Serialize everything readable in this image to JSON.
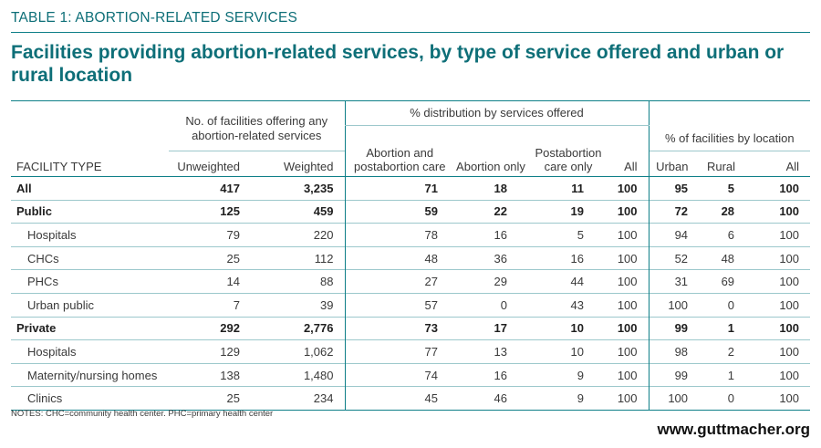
{
  "table_label": "TABLE 1: ABORTION-RELATED SERVICES",
  "title": "Facilities providing abortion-related services, by type of service offered and urban or rural location",
  "headers": {
    "facility_type": "FACILITY TYPE",
    "group_facilities": "No. of facilities offering any abortion-related services",
    "group_distribution": "% distribution by services offered",
    "group_location": "% of facilities by location",
    "unweighted": "Unweighted",
    "weighted": "Weighted",
    "abortion_postabortion": "Abortion and postabortion care",
    "abortion_only": "Abortion only",
    "postabortion_only": "Postabortion care only",
    "all": "All",
    "urban": "Urban",
    "rural": "Rural",
    "all_loc": "All"
  },
  "rows": [
    {
      "name": "All",
      "bold": true,
      "indent": false,
      "unw": "417",
      "wtd": "3,235",
      "ap": "71",
      "ao": "18",
      "po": "11",
      "all": "100",
      "urban": "95",
      "rural": "5",
      "all_loc": "100"
    },
    {
      "name": "Public",
      "bold": true,
      "indent": false,
      "unw": "125",
      "wtd": "459",
      "ap": "59",
      "ao": "22",
      "po": "19",
      "all": "100",
      "urban": "72",
      "rural": "28",
      "all_loc": "100"
    },
    {
      "name": "Hospitals",
      "bold": false,
      "indent": true,
      "unw": "79",
      "wtd": "220",
      "ap": "78",
      "ao": "16",
      "po": "5",
      "all": "100",
      "urban": "94",
      "rural": "6",
      "all_loc": "100"
    },
    {
      "name": "CHCs",
      "bold": false,
      "indent": true,
      "unw": "25",
      "wtd": "112",
      "ap": "48",
      "ao": "36",
      "po": "16",
      "all": "100",
      "urban": "52",
      "rural": "48",
      "all_loc": "100"
    },
    {
      "name": "PHCs",
      "bold": false,
      "indent": true,
      "unw": "14",
      "wtd": "88",
      "ap": "27",
      "ao": "29",
      "po": "44",
      "all": "100",
      "urban": "31",
      "rural": "69",
      "all_loc": "100"
    },
    {
      "name": "Urban public",
      "bold": false,
      "indent": true,
      "unw": "7",
      "wtd": "39",
      "ap": "57",
      "ao": "0",
      "po": "43",
      "all": "100",
      "urban": "100",
      "rural": "0",
      "all_loc": "100"
    },
    {
      "name": "Private",
      "bold": true,
      "indent": false,
      "unw": "292",
      "wtd": "2,776",
      "ap": "73",
      "ao": "17",
      "po": "10",
      "all": "100",
      "urban": "99",
      "rural": "1",
      "all_loc": "100"
    },
    {
      "name": "Hospitals",
      "bold": false,
      "indent": true,
      "unw": "129",
      "wtd": "1,062",
      "ap": "77",
      "ao": "13",
      "po": "10",
      "all": "100",
      "urban": "98",
      "rural": "2",
      "all_loc": "100"
    },
    {
      "name": "Maternity/nursing homes",
      "bold": false,
      "indent": true,
      "unw": "138",
      "wtd": "1,480",
      "ap": "74",
      "ao": "16",
      "po": "9",
      "all": "100",
      "urban": "99",
      "rural": "1",
      "all_loc": "100"
    },
    {
      "name": "Clinics",
      "bold": false,
      "indent": true,
      "unw": "25",
      "wtd": "234",
      "ap": "45",
      "ao": "46",
      "po": "9",
      "all": "100",
      "urban": "100",
      "rural": "0",
      "all_loc": "100"
    }
  ],
  "notes": "NOTES: CHC=community health center. PHC=primary health center",
  "website": "www.guttmacher.org",
  "colors": {
    "accent": "#0e6f78",
    "rule": "#0e7f88",
    "row_rule": "#9cc8cc"
  }
}
